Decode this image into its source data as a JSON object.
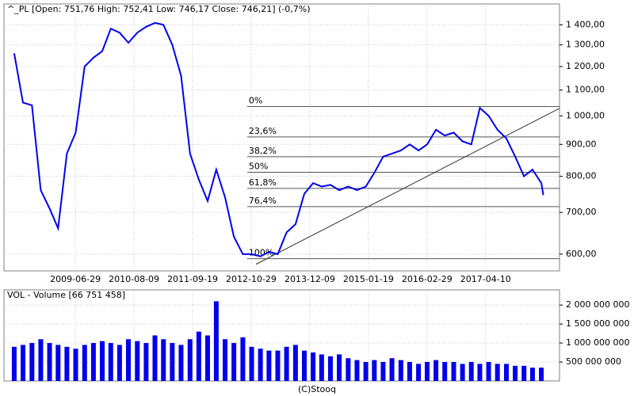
{
  "chart_data": [
    {
      "type": "line",
      "title": "^_PL [Open: 751,76  High: 752,41  Low: 746,17  Close: 746,21] (-0,7%)",
      "log_scale": true,
      "grid": true,
      "color": "#0000ee",
      "x": [
        "2008-05-01",
        "2008-07-01",
        "2008-09-01",
        "2008-11-01",
        "2009-01-01",
        "2009-03-01",
        "2009-05-01",
        "2009-07-01",
        "2009-09-01",
        "2009-11-01",
        "2010-01-01",
        "2010-03-01",
        "2010-05-01",
        "2010-07-01",
        "2010-09-01",
        "2010-11-01",
        "2011-01-01",
        "2011-03-01",
        "2011-05-01",
        "2011-07-01",
        "2011-09-01",
        "2011-11-01",
        "2012-01-01",
        "2012-03-01",
        "2012-05-01",
        "2012-07-01",
        "2012-09-01",
        "2012-11-01",
        "2013-01-01",
        "2013-03-01",
        "2013-05-01",
        "2013-07-01",
        "2013-09-01",
        "2013-11-01",
        "2014-01-01",
        "2014-03-01",
        "2014-05-01",
        "2014-07-01",
        "2014-09-01",
        "2014-11-01",
        "2015-01-01",
        "2015-03-01",
        "2015-05-01",
        "2015-07-01",
        "2015-09-01",
        "2015-11-01",
        "2016-01-01",
        "2016-03-01",
        "2016-05-01",
        "2016-07-01",
        "2016-09-01",
        "2016-11-01",
        "2017-01-01",
        "2017-03-01",
        "2017-05-01",
        "2017-07-01",
        "2017-09-01",
        "2017-11-01",
        "2018-01-01",
        "2018-03-01",
        "2018-05-01",
        "2018-05-15"
      ],
      "values": [
        1260,
        1050,
        1040,
        760,
        710,
        660,
        870,
        940,
        1200,
        1240,
        1270,
        1380,
        1360,
        1310,
        1360,
        1390,
        1410,
        1400,
        1300,
        1160,
        870,
        790,
        730,
        820,
        740,
        640,
        600,
        600,
        595,
        605,
        600,
        650,
        670,
        750,
        780,
        770,
        775,
        760,
        770,
        760,
        770,
        810,
        860,
        870,
        880,
        900,
        880,
        900,
        950,
        930,
        940,
        910,
        900,
        1030,
        1000,
        950,
        920,
        860,
        800,
        820,
        780,
        746.21
      ],
      "xlim": [
        "2008-02-20",
        "2018-09-04"
      ],
      "xticks": [
        "2009-06-29",
        "2010-08-09",
        "2011-09-19",
        "2012-10-29",
        "2013-12-09",
        "2015-01-19",
        "2016-02-29",
        "2017-04-10"
      ],
      "ylim": [
        564,
        1512
      ],
      "yticks": [
        {
          "value": 600,
          "label": "600,00"
        },
        {
          "value": 700,
          "label": "700,00"
        },
        {
          "value": 800,
          "label": "800,00"
        },
        {
          "value": 900,
          "label": "900,00"
        },
        {
          "value": 1000,
          "label": "1 000,00"
        },
        {
          "value": 1100,
          "label": "1 100,00"
        },
        {
          "value": 1200,
          "label": "1 200,00"
        },
        {
          "value": 1300,
          "label": "1 300,00"
        },
        {
          "value": 1400,
          "label": "1 400,00"
        }
      ],
      "fibonacci": {
        "start": "2012-10-01",
        "levels": [
          {
            "label": "0%",
            "value": 1035
          },
          {
            "label": "23,6%",
            "value": 925
          },
          {
            "label": "38,2%",
            "value": 860
          },
          {
            "label": "50%",
            "value": 812
          },
          {
            "label": "61,8%",
            "value": 765
          },
          {
            "label": "76,4%",
            "value": 715
          },
          {
            "label": "100%",
            "value": 590
          }
        ]
      },
      "trendline": {
        "x": [
          "2012-12-01",
          "2018-09-04"
        ],
        "values": [
          578,
          1028
        ]
      }
    },
    {
      "type": "bar",
      "title": "VOL - Volume [66 751 458]",
      "grid": true,
      "color": "#0000ee",
      "x": [
        "2008-05-01",
        "2008-07-01",
        "2008-09-01",
        "2008-11-01",
        "2009-01-01",
        "2009-03-01",
        "2009-05-01",
        "2009-07-01",
        "2009-09-01",
        "2009-11-01",
        "2010-01-01",
        "2010-03-01",
        "2010-05-01",
        "2010-07-01",
        "2010-09-01",
        "2010-11-01",
        "2011-01-01",
        "2011-03-01",
        "2011-05-01",
        "2011-07-01",
        "2011-09-01",
        "2011-11-01",
        "2012-01-01",
        "2012-03-01",
        "2012-05-01",
        "2012-07-01",
        "2012-09-01",
        "2012-11-01",
        "2013-01-01",
        "2013-03-01",
        "2013-05-01",
        "2013-07-01",
        "2013-09-01",
        "2013-11-01",
        "2014-01-01",
        "2014-03-01",
        "2014-05-01",
        "2014-07-01",
        "2014-09-01",
        "2014-11-01",
        "2015-01-01",
        "2015-03-01",
        "2015-05-01",
        "2015-07-01",
        "2015-09-01",
        "2015-11-01",
        "2016-01-01",
        "2016-03-01",
        "2016-05-01",
        "2016-07-01",
        "2016-09-01",
        "2016-11-01",
        "2017-01-01",
        "2017-03-01",
        "2017-05-01",
        "2017-07-01",
        "2017-09-01",
        "2017-11-01",
        "2018-01-01",
        "2018-03-01",
        "2018-05-01"
      ],
      "values": [
        900000000,
        950000000,
        1000000000,
        1100000000,
        1000000000,
        950000000,
        900000000,
        850000000,
        950000000,
        1000000000,
        1050000000,
        1000000000,
        950000000,
        1100000000,
        1050000000,
        1000000000,
        1200000000,
        1100000000,
        1000000000,
        950000000,
        1100000000,
        1300000000,
        1200000000,
        2100000000,
        1100000000,
        1000000000,
        1150000000,
        900000000,
        850000000,
        800000000,
        800000000,
        900000000,
        950000000,
        800000000,
        750000000,
        700000000,
        650000000,
        700000000,
        600000000,
        550000000,
        500000000,
        550000000,
        500000000,
        600000000,
        550000000,
        500000000,
        450000000,
        500000000,
        550000000,
        500000000,
        500000000,
        450000000,
        500000000,
        450000000,
        500000000,
        450000000,
        450000000,
        400000000,
        400000000,
        350000000,
        350000000
      ],
      "xlim": [
        "2008-02-20",
        "2018-09-04"
      ],
      "ylim": [
        0,
        2400000000
      ],
      "yticks": [
        {
          "value": 500000000,
          "label": "500 000 000"
        },
        {
          "value": 1000000000,
          "label": "1 000 000 000"
        },
        {
          "value": 1500000000,
          "label": "1 500 000 000"
        },
        {
          "value": 2000000000,
          "label": "2 000 000 000"
        }
      ],
      "footer": "(C)Stooq"
    }
  ]
}
